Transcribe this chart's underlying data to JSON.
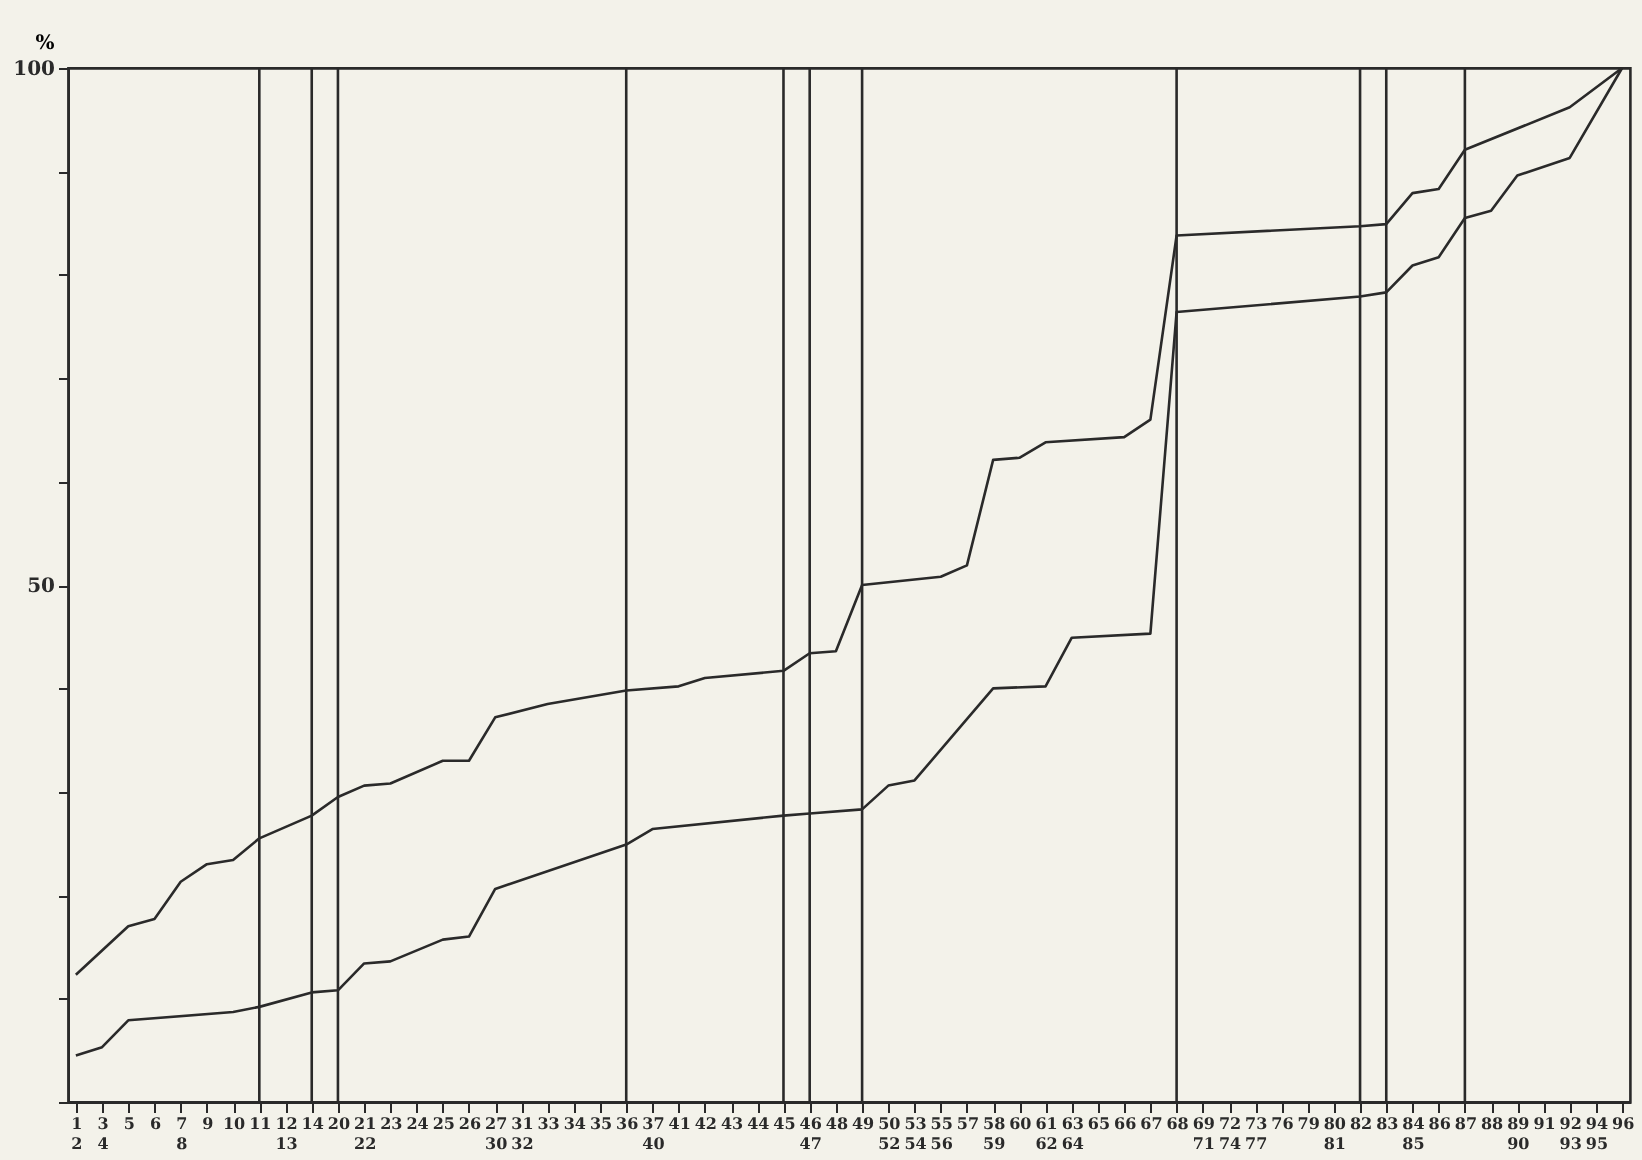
{
  "chart_data": {
    "type": "line",
    "ylabel": "%",
    "categories": [
      "1\n2",
      "3\n4",
      "5",
      "6",
      "7\n8",
      "9",
      "10",
      "11",
      "12\n13",
      "14",
      "20",
      "21\n22",
      "23",
      "24",
      "25",
      "26",
      "27\n30",
      "31\n32",
      "33",
      "34",
      "35",
      "36",
      "37\n40",
      "41",
      "42",
      "43",
      "44",
      "45",
      "46\n47",
      "48",
      "49",
      "50\n52",
      "53\n54",
      "55\n56",
      "57",
      "58\n59",
      "60",
      "61\n62",
      "63\n64",
      "65",
      "66",
      "67",
      "68",
      "69\n71",
      "72\n74",
      "73\n77",
      "76",
      "79",
      "80\n81",
      "82",
      "83",
      "84\n85",
      "86",
      "87",
      "88",
      "89\n90",
      "91",
      "92\n93",
      "94\n95",
      "96"
    ],
    "series": [
      {
        "color": "#2a2a2a",
        "x": [
          "1\n2",
          "5",
          "6",
          "7\n8",
          "9",
          "10",
          "11",
          "14",
          "20",
          "21\n22",
          "23",
          "25",
          "26",
          "27\n30",
          "33",
          "36",
          "41",
          "42",
          "45",
          "46\n47",
          "48",
          "49",
          "55\n56",
          "57",
          "58\n59",
          "60",
          "61\n62",
          "66",
          "67",
          "68",
          "82",
          "83",
          "84\n85",
          "86",
          "87",
          "92\n93",
          "96"
        ],
        "values": [
          12.3,
          17.0,
          17.7,
          21.3,
          23.0,
          23.4,
          25.5,
          27.7,
          29.5,
          30.6,
          30.8,
          33.0,
          33.0,
          37.2,
          38.5,
          39.8,
          40.2,
          41.0,
          41.7,
          43.4,
          43.6,
          50.0,
          50.8,
          51.9,
          62.1,
          62.3,
          63.8,
          64.3,
          66.0,
          83.8,
          84.7,
          84.9,
          87.9,
          88.3,
          92.1,
          96.2,
          100
        ]
      },
      {
        "color": "#2a2a2a",
        "x": [
          "1\n2",
          "3\n4",
          "5",
          "10",
          "11",
          "14",
          "20",
          "21\n22",
          "23",
          "25",
          "26",
          "27\n30",
          "36",
          "37\n40",
          "45",
          "46\n47",
          "49",
          "50\n52",
          "53\n54",
          "58\n59",
          "61\n62",
          "63\n64",
          "67",
          "68",
          "82",
          "83",
          "84\n85",
          "86",
          "87",
          "88",
          "89\n90",
          "92\n93",
          "96"
        ],
        "values": [
          4.5,
          5.3,
          7.9,
          8.7,
          9.2,
          10.6,
          10.8,
          13.4,
          13.6,
          15.7,
          16.0,
          20.6,
          24.9,
          26.4,
          27.7,
          27.9,
          28.3,
          30.6,
          31.1,
          40.0,
          40.2,
          44.9,
          45.3,
          76.4,
          77.9,
          78.3,
          80.9,
          81.7,
          85.5,
          86.2,
          89.6,
          91.3,
          100
        ]
      }
    ],
    "ylim": [
      0,
      100
    ],
    "yticks": [
      {
        "value": 0,
        "label": null
      },
      {
        "value": 10,
        "label": null
      },
      {
        "value": 20,
        "label": null
      },
      {
        "value": 30,
        "label": null
      },
      {
        "value": 40,
        "label": null
      },
      50,
      {
        "value": 60,
        "label": null
      },
      {
        "value": 70,
        "label": null
      },
      {
        "value": 80,
        "label": null
      },
      {
        "value": 90,
        "label": null
      },
      100
    ],
    "ref_lines": [
      {
        "axis": "x",
        "value": "11",
        "color": "#2a2a2a"
      },
      {
        "axis": "x",
        "value": "14",
        "color": "#2a2a2a"
      },
      {
        "axis": "x",
        "value": "20",
        "color": "#2a2a2a"
      },
      {
        "axis": "x",
        "value": "36",
        "color": "#2a2a2a"
      },
      {
        "axis": "x",
        "value": "45",
        "color": "#2a2a2a"
      },
      {
        "axis": "x",
        "value": "46\n47",
        "color": "#2a2a2a"
      },
      {
        "axis": "x",
        "value": "49",
        "color": "#2a2a2a"
      },
      {
        "axis": "x",
        "value": "68",
        "color": "#2a2a2a"
      },
      {
        "axis": "x",
        "value": "82",
        "color": "#2a2a2a"
      },
      {
        "axis": "x",
        "value": "83",
        "color": "#2a2a2a"
      },
      {
        "axis": "x",
        "value": "87",
        "color": "#2a2a2a"
      }
    ],
    "grid": false,
    "marker": "none",
    "line_style": "solid"
  }
}
